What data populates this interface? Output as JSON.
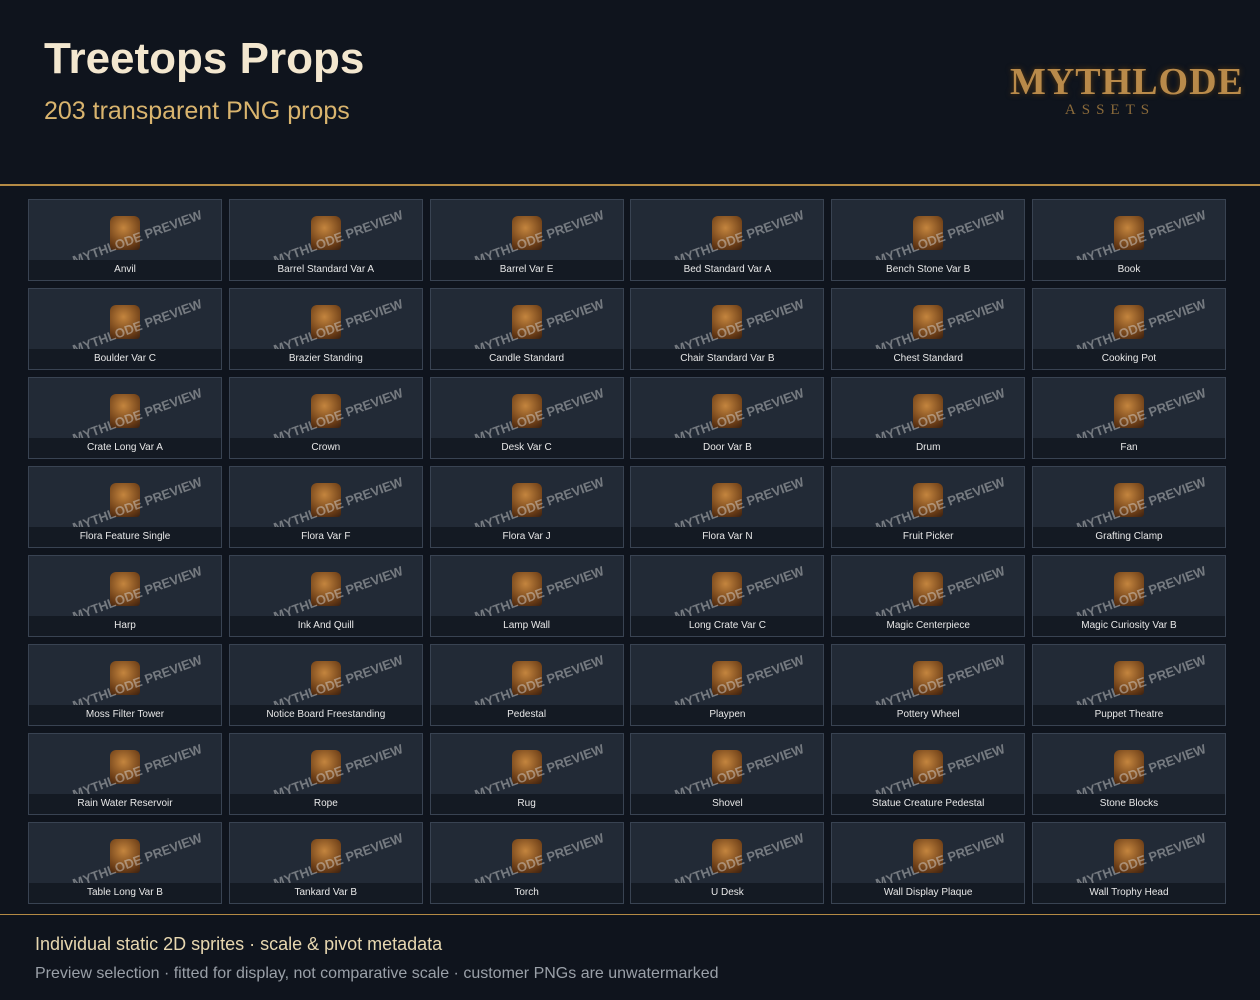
{
  "header": {
    "title": "Treetops Props",
    "subtitle": "203 transparent PNG props",
    "logo": {
      "name": "MYTHLODE",
      "tagline": "ASSETS"
    }
  },
  "watermark": "MYTHLODE PREVIEW",
  "items": [
    "Anvil",
    "Barrel Standard Var A",
    "Barrel Var E",
    "Bed Standard Var A",
    "Bench Stone Var B",
    "Book",
    "Boulder Var C",
    "Brazier Standing",
    "Candle Standard",
    "Chair Standard Var B",
    "Chest Standard",
    "Cooking Pot",
    "Crate Long Var A",
    "Crown",
    "Desk Var C",
    "Door Var B",
    "Drum",
    "Fan",
    "Flora Feature Single",
    "Flora Var F",
    "Flora Var J",
    "Flora Var N",
    "Fruit Picker",
    "Grafting Clamp",
    "Harp",
    "Ink And Quill",
    "Lamp Wall",
    "Long Crate Var C",
    "Magic Centerpiece",
    "Magic Curiosity Var B",
    "Moss Filter Tower",
    "Notice Board Freestanding",
    "Pedestal",
    "Playpen",
    "Pottery Wheel",
    "Puppet Theatre",
    "Rain Water Reservoir",
    "Rope",
    "Rug",
    "Shovel",
    "Statue Creature Pedestal",
    "Stone Blocks",
    "Table Long Var B",
    "Tankard Var B",
    "Torch",
    "U Desk",
    "Wall Display Plaque",
    "Wall Trophy Head"
  ],
  "footer": {
    "line1": "Individual static 2D sprites · scale & pivot metadata",
    "line2": "Preview selection · fitted for display, not comparative scale · customer PNGs are unwatermarked"
  }
}
